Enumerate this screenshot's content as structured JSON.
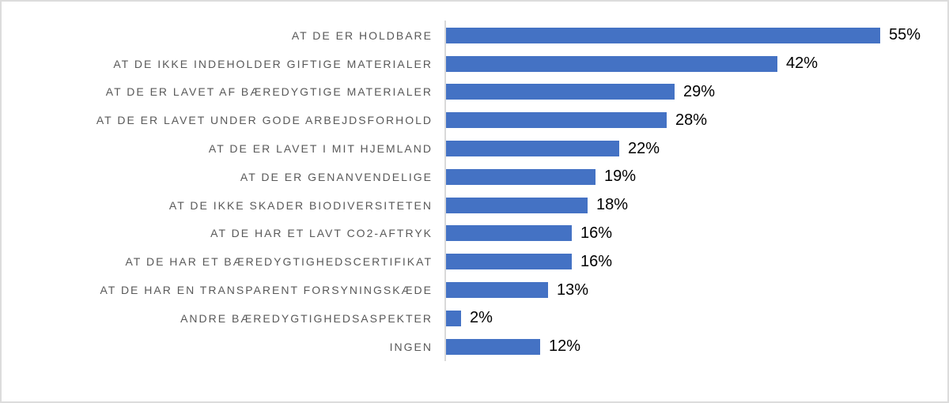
{
  "chart": {
    "accent_color": "#4472C4",
    "axis_color": "#D9D9D9",
    "frame_border_color": "#DCDCDC",
    "label_color": "#595959",
    "value_color": "#000000"
  },
  "chart_data": {
    "type": "bar",
    "orientation": "horizontal",
    "title": "",
    "xlabel": "",
    "ylabel": "",
    "grid": false,
    "legend": false,
    "xlim": [
      0,
      60
    ],
    "categories": [
      "AT DE ER HOLDBARE",
      "AT DE IKKE INDEHOLDER GIFTIGE MATERIALER",
      "AT DE ER LAVET AF BÆREDYGTIGE MATERIALER",
      "AT DE ER LAVET UNDER GODE ARBEJDSFORHOLD",
      "AT DE ER LAVET I MIT HJEMLAND",
      "AT DE ER GENANVENDELIGE",
      "AT DE IKKE SKADER BIODIVERSITETEN",
      "AT DE HAR ET LAVT CO2-AFTRYK",
      "AT DE HAR ET BÆREDYGTIGHEDSCERTIFIKAT",
      "AT DE HAR EN TRANSPARENT FORSYNINGSKÆDE",
      "ANDRE BÆREDYGTIGHEDSASPEKTER",
      "INGEN"
    ],
    "values": [
      55,
      42,
      29,
      28,
      22,
      19,
      18,
      16,
      16,
      13,
      2,
      12
    ],
    "value_labels": [
      "55%",
      "42%",
      "29%",
      "28%",
      "22%",
      "19%",
      "18%",
      "16%",
      "16%",
      "13%",
      "2%",
      "12%"
    ]
  }
}
